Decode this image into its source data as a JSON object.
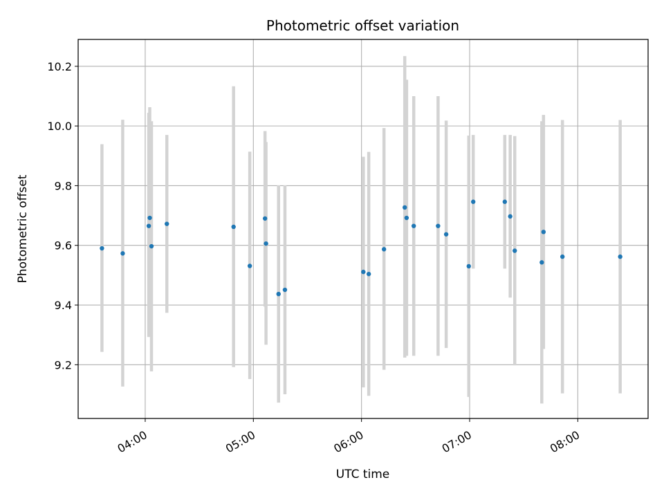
{
  "chart_data": {
    "type": "scatter",
    "title": "Photometric offset variation",
    "xlabel": "UTC time",
    "ylabel": "Photometric offset",
    "x_unit": "hours UTC",
    "xlim": [
      3.38,
      8.65
    ],
    "ylim": [
      9.02,
      10.29
    ],
    "x_ticks": [
      {
        "value": 4,
        "label": "04:00"
      },
      {
        "value": 5,
        "label": "05:00"
      },
      {
        "value": 6,
        "label": "06:00"
      },
      {
        "value": 7,
        "label": "07:00"
      },
      {
        "value": 8,
        "label": "08:00"
      }
    ],
    "y_ticks": [
      {
        "value": 9.2,
        "label": "9.2"
      },
      {
        "value": 9.4,
        "label": "9.4"
      },
      {
        "value": 9.6,
        "label": "9.6"
      },
      {
        "value": 9.8,
        "label": "9.8"
      },
      {
        "value": 10.0,
        "label": "10.0"
      },
      {
        "value": 10.2,
        "label": "10.2"
      }
    ],
    "grid": true,
    "colors": {
      "point": "#1f77b4",
      "errorbar": "#d3d3d3",
      "grid": "#b0b0b0"
    },
    "points": [
      {
        "x": 3.6,
        "y": 9.59,
        "low": 9.243,
        "high": 9.939
      },
      {
        "x": 3.792,
        "y": 9.573,
        "low": 9.127,
        "high": 10.021
      },
      {
        "x": 4.033,
        "y": 9.665,
        "low": 9.293,
        "high": 10.044
      },
      {
        "x": 4.042,
        "y": 9.692,
        "low": 9.32,
        "high": 10.063
      },
      {
        "x": 4.058,
        "y": 9.597,
        "low": 9.178,
        "high": 10.016
      },
      {
        "x": 4.2,
        "y": 9.672,
        "low": 9.374,
        "high": 9.97
      },
      {
        "x": 4.817,
        "y": 9.662,
        "low": 9.192,
        "high": 10.133
      },
      {
        "x": 4.967,
        "y": 9.531,
        "low": 9.152,
        "high": 9.914
      },
      {
        "x": 5.108,
        "y": 9.69,
        "low": 9.395,
        "high": 9.983
      },
      {
        "x": 5.117,
        "y": 9.606,
        "low": 9.267,
        "high": 9.946
      },
      {
        "x": 5.233,
        "y": 9.437,
        "low": 9.073,
        "high": 9.801
      },
      {
        "x": 5.292,
        "y": 9.451,
        "low": 9.101,
        "high": 9.801
      },
      {
        "x": 6.017,
        "y": 9.511,
        "low": 9.124,
        "high": 9.897
      },
      {
        "x": 6.067,
        "y": 9.504,
        "low": 9.096,
        "high": 9.913
      },
      {
        "x": 6.208,
        "y": 9.587,
        "low": 9.183,
        "high": 9.993
      },
      {
        "x": 6.4,
        "y": 9.727,
        "low": 9.224,
        "high": 10.234
      },
      {
        "x": 6.417,
        "y": 9.692,
        "low": 9.23,
        "high": 10.155
      },
      {
        "x": 6.483,
        "y": 9.665,
        "low": 9.23,
        "high": 10.1
      },
      {
        "x": 6.708,
        "y": 9.665,
        "low": 9.23,
        "high": 10.1
      },
      {
        "x": 6.783,
        "y": 9.637,
        "low": 9.256,
        "high": 10.018
      },
      {
        "x": 6.992,
        "y": 9.53,
        "low": 9.092,
        "high": 9.968
      },
      {
        "x": 7.033,
        "y": 9.746,
        "low": 9.522,
        "high": 9.97
      },
      {
        "x": 7.325,
        "y": 9.746,
        "low": 9.522,
        "high": 9.97
      },
      {
        "x": 7.375,
        "y": 9.697,
        "low": 9.425,
        "high": 9.97
      },
      {
        "x": 7.417,
        "y": 9.582,
        "low": 9.198,
        "high": 9.966
      },
      {
        "x": 7.667,
        "y": 9.543,
        "low": 9.07,
        "high": 10.016
      },
      {
        "x": 7.683,
        "y": 9.645,
        "low": 9.253,
        "high": 10.037
      },
      {
        "x": 7.858,
        "y": 9.562,
        "low": 9.104,
        "high": 10.02
      },
      {
        "x": 8.392,
        "y": 9.562,
        "low": 9.104,
        "high": 10.02
      }
    ]
  }
}
